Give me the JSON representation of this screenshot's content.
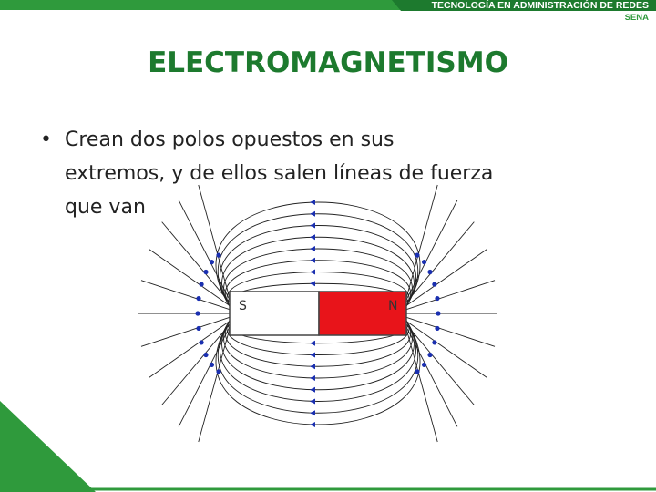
{
  "header": {
    "program": "TECNOLOGÍA EN ADMINISTRACIÓN DE REDES",
    "brand": "SENA"
  },
  "title": "ELECTROMAGNETISMO",
  "bullets": [
    {
      "lines": [
        "Crean dos polos opuestos en sus",
        "extremos, y de ellos salen líneas de fuerza",
        "que van"
      ]
    }
  ],
  "figure": {
    "south_label": "S",
    "north_label": "N"
  }
}
